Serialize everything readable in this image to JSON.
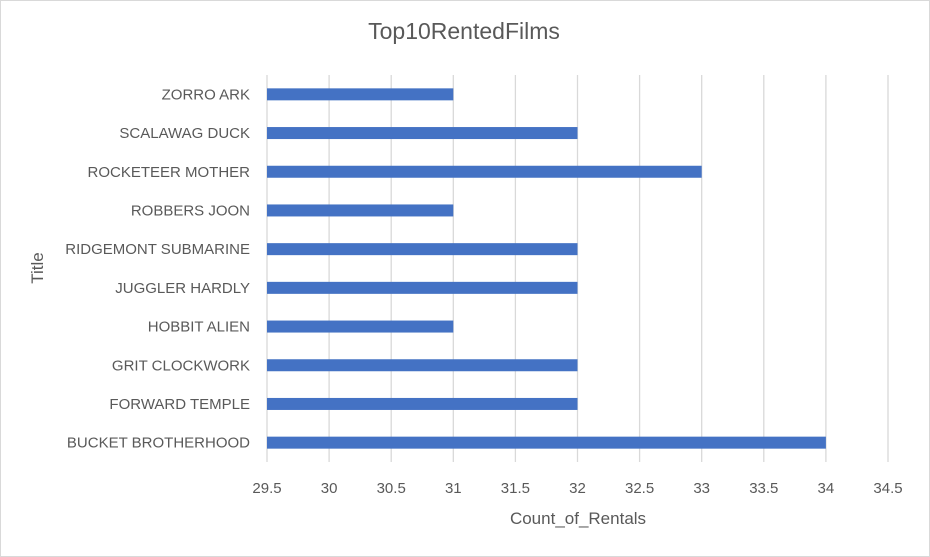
{
  "chart_data": {
    "type": "bar",
    "orientation": "horizontal",
    "title": "Top10RentedFilms",
    "xlabel": "Count_of_Rentals",
    "ylabel": "Title",
    "categories": [
      "ZORRO ARK",
      "SCALAWAG DUCK",
      "ROCKETEER MOTHER",
      "ROBBERS JOON",
      "RIDGEMONT SUBMARINE",
      "JUGGLER HARDLY",
      "HOBBIT ALIEN",
      "GRIT CLOCKWORK",
      "FORWARD TEMPLE",
      "BUCKET BROTHERHOOD"
    ],
    "values": [
      31,
      32,
      33,
      31,
      32,
      32,
      31,
      32,
      32,
      34
    ],
    "xlim": [
      29.5,
      34.5
    ],
    "xticks": [
      "29.5",
      "30",
      "30.5",
      "31",
      "31.5",
      "32",
      "32.5",
      "33",
      "33.5",
      "34",
      "34.5"
    ],
    "grid": "vertical",
    "legend": "none",
    "bar_color": "#4472c4",
    "grid_color": "#d9d9d9",
    "text_color": "#595959"
  }
}
